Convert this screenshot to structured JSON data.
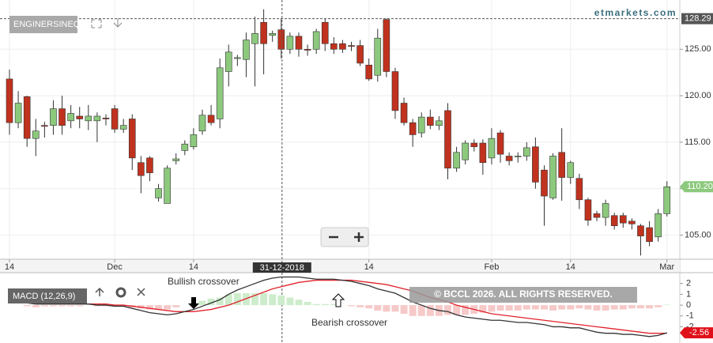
{
  "brand": "etmarkets.com",
  "copyright": "© BCCL 2026. ALL RIGHTS RESERVED.",
  "chart_data": [
    {
      "type": "candlestick",
      "title": "ENGINERSINEQ",
      "up_color": "#8cc97d",
      "down_color": "#c0321e",
      "grid": true,
      "categories": [
        "14",
        null,
        null,
        null,
        null,
        null,
        null,
        null,
        null,
        null,
        null,
        null,
        "Dec",
        null,
        null,
        null,
        null,
        null,
        null,
        null,
        null,
        "14",
        null,
        null,
        null,
        null,
        null,
        null,
        null,
        null,
        null,
        null,
        null,
        null,
        null,
        null,
        null,
        null,
        null,
        null,
        null,
        "14",
        null,
        null,
        null,
        null,
        null,
        null,
        null,
        null,
        null,
        null,
        null,
        null,
        null,
        "Feb",
        null,
        null,
        null,
        null,
        null,
        null,
        null,
        null,
        "14",
        null,
        null,
        null,
        null,
        null,
        null,
        null,
        null,
        null,
        null,
        "Mar"
      ],
      "open": [
        121.8,
        117.1,
        119.9,
        115.4,
        116.8,
        116.8,
        118.6,
        117.3,
        117.8,
        117.3,
        117.3,
        117.6,
        118.6,
        116.4,
        117.5,
        112.8,
        113.3,
        109.0,
        108.4,
        113.0,
        114.1,
        114.5,
        116.2,
        117.9,
        117.5,
        122.6,
        124.0,
        123.9,
        125.6,
        127.9,
        126.5,
        127.1,
        125.0,
        126.4,
        125.0,
        125.0,
        127.9,
        125.6,
        125.6,
        125.4,
        125.4,
        123.3,
        122.2,
        128.2,
        122.6,
        119.2,
        117.1,
        116.0,
        117.7,
        116.8,
        118.4,
        112.2,
        113.1,
        114.9,
        114.9,
        113.3,
        116.0,
        113.5,
        113.5,
        113.5,
        114.5,
        112.0,
        109.0,
        113.9,
        111.2,
        111.1,
        108.8,
        107.3,
        106.9,
        107.1,
        107.1,
        106.5,
        106.0,
        105.8,
        104.8,
        107.3
      ],
      "high": [
        122.8,
        120.5,
        120.0,
        117.5,
        117.2,
        119.5,
        120.0,
        119.0,
        118.8,
        119.0,
        118.2,
        118.0,
        119.0,
        117.5,
        118.0,
        113.5,
        113.5,
        110.5,
        112.5,
        113.8,
        115.2,
        116.5,
        118.5,
        119.0,
        124.0,
        125.5,
        124.4,
        126.8,
        128.5,
        129.3,
        127.0,
        128.3,
        126.8,
        126.8,
        125.5,
        127.2,
        128.3,
        126.3,
        126.0,
        125.8,
        126.0,
        124.0,
        127.2,
        128.3,
        123.0,
        119.8,
        117.5,
        118.2,
        118.5,
        117.8,
        119.2,
        114.5,
        115.2,
        115.3,
        115.3,
        116.5,
        116.3,
        113.9,
        113.9,
        115.0,
        115.5,
        112.5,
        113.8,
        116.5,
        113.0,
        111.6,
        109.0,
        107.6,
        108.8,
        107.4,
        107.4,
        106.8,
        106.2,
        106.5,
        107.8,
        110.8
      ],
      "low": [
        115.8,
        116.5,
        114.5,
        113.5,
        115.5,
        115.8,
        115.8,
        116.5,
        116.5,
        116.3,
        115.0,
        116.8,
        116.0,
        116.0,
        112.0,
        109.5,
        110.8,
        108.6,
        108.4,
        112.6,
        113.6,
        114.2,
        115.8,
        116.8,
        116.5,
        121.0,
        123.2,
        122.0,
        121.0,
        122.3,
        125.8,
        124.0,
        124.5,
        124.2,
        124.3,
        124.5,
        124.8,
        124.5,
        124.6,
        124.8,
        123.2,
        121.6,
        121.5,
        122.0,
        117.5,
        116.8,
        114.5,
        115.5,
        116.4,
        116.3,
        111.0,
        111.8,
        112.6,
        114.0,
        111.5,
        112.6,
        112.8,
        112.5,
        112.8,
        113.0,
        110.0,
        106.0,
        108.8,
        108.7,
        110.5,
        107.8,
        106.0,
        106.5,
        106.0,
        105.6,
        105.8,
        105.6,
        102.8,
        103.8,
        104.3,
        107.0
      ],
      "close": [
        117.1,
        119.2,
        115.4,
        116.2,
        116.7,
        118.6,
        116.8,
        118.1,
        117.5,
        117.8,
        117.8,
        117.5,
        116.4,
        116.8,
        113.3,
        111.4,
        111.7,
        110.0,
        112.2,
        113.2,
        114.8,
        115.8,
        117.9,
        117.1,
        123.0,
        124.7,
        124.1,
        126.0,
        126.7,
        125.6,
        126.7,
        125.0,
        126.4,
        125.0,
        124.9,
        126.9,
        125.6,
        125.0,
        125.0,
        125.3,
        123.5,
        121.8,
        126.2,
        122.6,
        118.4,
        117.1,
        115.8,
        117.7,
        116.8,
        117.3,
        112.2,
        113.9,
        114.9,
        114.5,
        112.8,
        115.4,
        113.7,
        113.0,
        113.5,
        114.4,
        110.7,
        109.2,
        113.5,
        111.2,
        112.8,
        108.8,
        106.6,
        106.9,
        108.4,
        106.0,
        106.3,
        106.2,
        104.9,
        104.3,
        107.3,
        110.2
      ],
      "ylim": [
        102.4,
        130.3
      ],
      "yticks": [
        {
          "value": 105,
          "label": "105.00"
        },
        {
          "value": 110,
          "label": "110.00"
        },
        {
          "value": 115,
          "label": "115.00"
        },
        {
          "value": 120,
          "label": "120.00"
        },
        {
          "value": 125,
          "label": "125.00"
        }
      ],
      "last_price": {
        "value": 110.2,
        "label": "110.20"
      },
      "crosshair": {
        "price": 128.29,
        "date": "31-12-2018"
      }
    },
    {
      "type": "macd",
      "title": "MACD (12,26,9)",
      "annotations": [
        "Bullish crossover",
        "Bearish crossover"
      ],
      "macd": {
        "color": "#333333",
        "values": [
          0.3,
          0.3,
          0.2,
          0.1,
          0.1,
          0.1,
          0.1,
          0.1,
          0.1,
          0.1,
          0.0,
          0.0,
          -0.1,
          -0.1,
          -0.3,
          -0.5,
          -0.7,
          -0.8,
          -0.9,
          -0.8,
          -0.6,
          -0.4,
          -0.1,
          0.2,
          0.5,
          1.0,
          1.4,
          1.7,
          2.0,
          2.3,
          2.5,
          2.6,
          2.6,
          2.6,
          2.5,
          2.4,
          2.4,
          2.4,
          2.3,
          2.2,
          2.0,
          1.8,
          1.5,
          1.3,
          1.1,
          0.7,
          0.3,
          0.0,
          -0.3,
          -0.5,
          -0.6,
          -0.9,
          -1.1,
          -1.2,
          -1.3,
          -1.4,
          -1.4,
          -1.5,
          -1.6,
          -1.6,
          -1.7,
          -1.8,
          -2.0,
          -2.0,
          -2.1,
          -2.1,
          -2.3,
          -2.5,
          -2.6,
          -2.6,
          -2.7,
          -2.7,
          -2.8,
          -2.9,
          -2.8,
          -2.56
        ]
      },
      "signal": {
        "color": "#e0232b",
        "values": [
          0.3,
          0.3,
          0.3,
          0.3,
          0.2,
          0.2,
          0.2,
          0.2,
          0.2,
          0.1,
          0.1,
          0.1,
          0.0,
          0.0,
          -0.1,
          -0.2,
          -0.3,
          -0.4,
          -0.5,
          -0.6,
          -0.6,
          -0.6,
          -0.5,
          -0.4,
          -0.2,
          0.0,
          0.3,
          0.6,
          0.9,
          1.2,
          1.5,
          1.7,
          1.9,
          2.1,
          2.2,
          2.3,
          2.3,
          2.3,
          2.3,
          2.3,
          2.2,
          2.1,
          2.0,
          1.9,
          1.7,
          1.5,
          1.3,
          1.0,
          0.7,
          0.5,
          0.3,
          0.0,
          -0.2,
          -0.4,
          -0.6,
          -0.8,
          -0.9,
          -1.0,
          -1.1,
          -1.2,
          -1.3,
          -1.4,
          -1.5,
          -1.6,
          -1.7,
          -1.8,
          -1.9,
          -2.0,
          -2.1,
          -2.2,
          -2.3,
          -2.4,
          -2.5,
          -2.6,
          -2.6,
          -2.6
        ]
      },
      "histogram": {
        "up_color": "#cdeccb",
        "down_color": "#f6c9c9",
        "values": [
          0,
          0,
          -0.1,
          -0.2,
          -0.1,
          -0.1,
          -0.1,
          -0.1,
          -0.1,
          0,
          -0.1,
          -0.1,
          -0.1,
          -0.1,
          -0.2,
          -0.3,
          -0.4,
          -0.4,
          -0.4,
          -0.2,
          0,
          0.2,
          0.4,
          0.6,
          0.7,
          1.0,
          1.1,
          1.1,
          1.1,
          1.1,
          1.0,
          0.9,
          0.7,
          0.5,
          0.3,
          0.1,
          0.1,
          0.1,
          0,
          -0.1,
          -0.2,
          -0.3,
          -0.5,
          -0.6,
          -0.6,
          -0.8,
          -1.0,
          -1.0,
          -1.0,
          -1.0,
          -0.9,
          -0.9,
          -0.9,
          -0.8,
          -0.7,
          -0.6,
          -0.5,
          -0.5,
          -0.5,
          -0.4,
          -0.4,
          -0.4,
          -0.5,
          -0.4,
          -0.4,
          -0.3,
          -0.4,
          -0.5,
          -0.5,
          -0.4,
          -0.4,
          -0.3,
          -0.3,
          -0.3,
          -0.2,
          0.04
        ]
      },
      "ylim": [
        -3.5,
        3
      ],
      "yticks": [
        2,
        1,
        0,
        -1,
        -2
      ]
    }
  ]
}
